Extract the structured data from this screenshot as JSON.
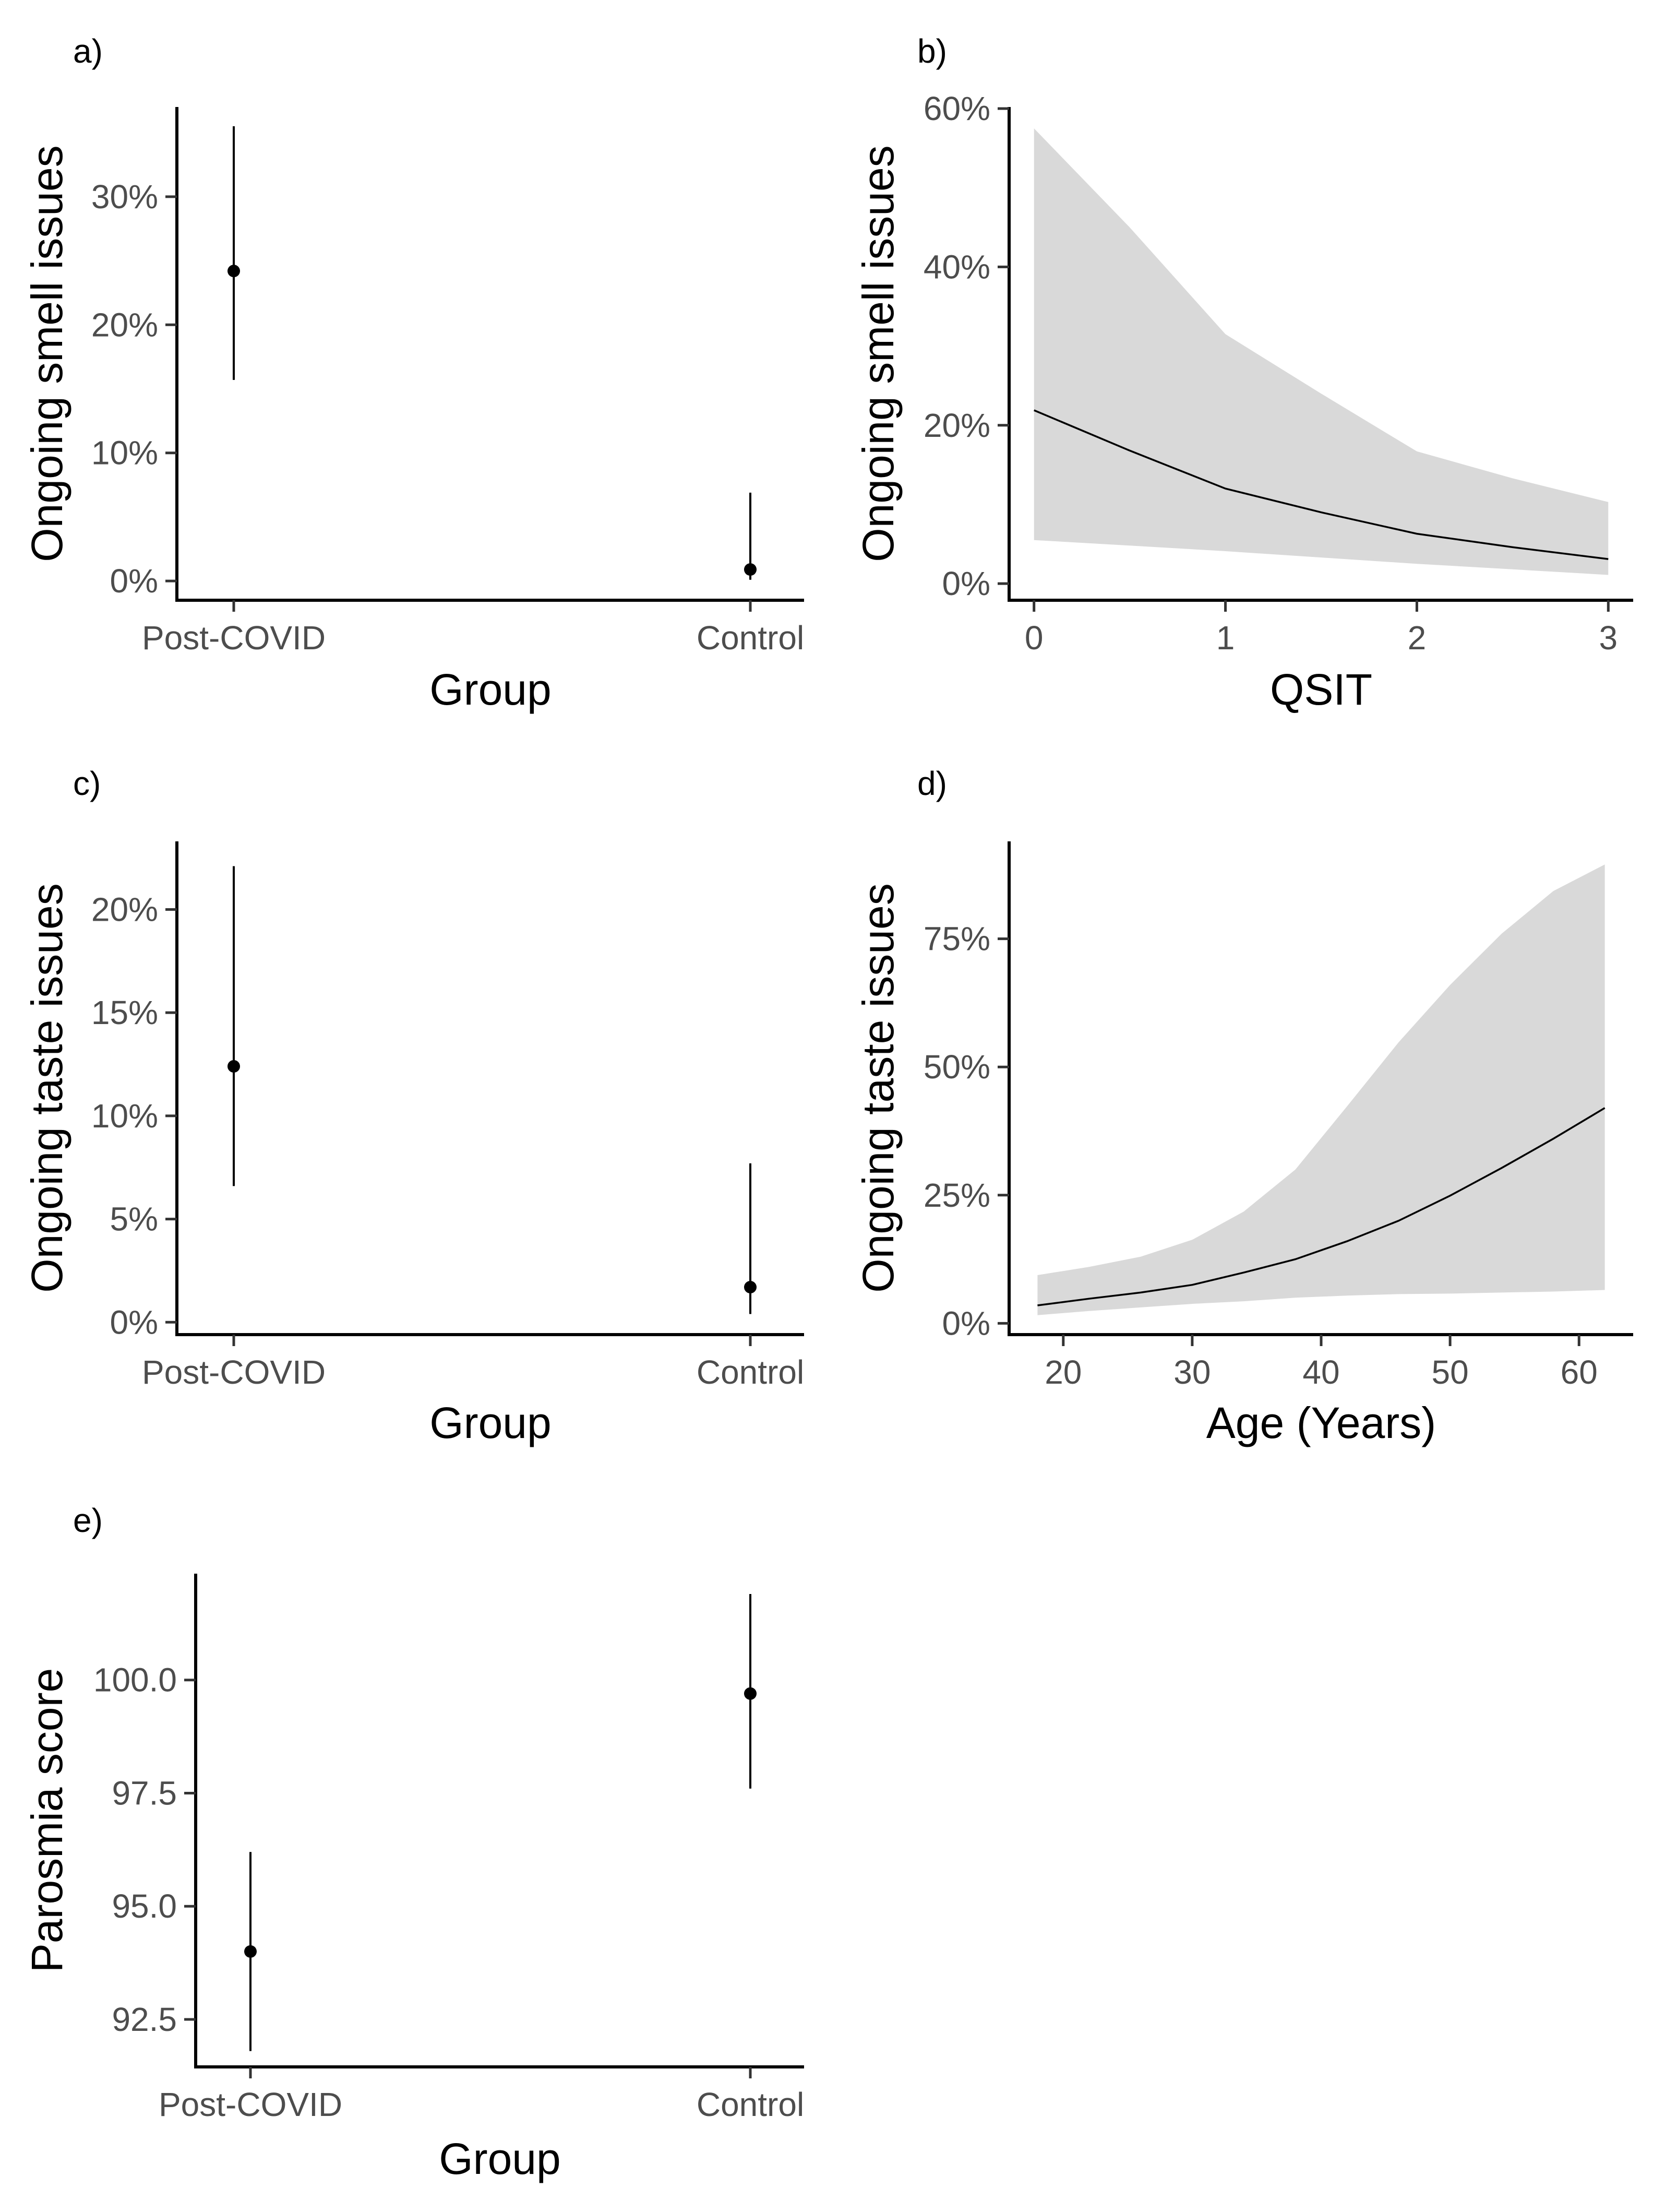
{
  "chart_data": [
    {
      "panel": "a)",
      "type": "scatter",
      "subtype": "point-errorbar",
      "xlabel": "Group",
      "ylabel": "Ongoing smell issues",
      "categories": [
        "Post-COVID",
        "Control"
      ],
      "values": [
        24.2,
        0.9
      ],
      "lower": [
        15.7,
        0.1
      ],
      "upper": [
        35.5,
        6.9
      ],
      "yticks": [
        0,
        10,
        20,
        30
      ],
      "ytick_labels": [
        "0%",
        "10%",
        "20%",
        "30%"
      ],
      "ylim": [
        -1.5,
        37
      ]
    },
    {
      "panel": "b)",
      "type": "area",
      "subtype": "line-ribbon",
      "xlabel": "QSIT",
      "ylabel": "Ongoing smell issues",
      "x": [
        0,
        0.5,
        1,
        1.5,
        2,
        2.5,
        3
      ],
      "y": [
        21.9,
        16.8,
        12.0,
        9.0,
        6.3,
        4.6,
        3.1
      ],
      "lower": [
        5.5,
        4.8,
        4.1,
        3.3,
        2.5,
        1.8,
        1.1
      ],
      "upper": [
        57.5,
        45.0,
        31.5,
        24.0,
        16.7,
        13.3,
        10.3
      ],
      "xticks": [
        0,
        1,
        2,
        3
      ],
      "xtick_labels": [
        "0",
        "1",
        "2",
        "3"
      ],
      "yticks": [
        0,
        20,
        40,
        60
      ],
      "ytick_labels": [
        "0%",
        "20%",
        "40%",
        "60%"
      ],
      "xlim": [
        -0.13,
        3.13
      ],
      "ylim": [
        -2.1,
        60.2
      ]
    },
    {
      "panel": "c)",
      "type": "scatter",
      "subtype": "point-errorbar",
      "xlabel": "Group",
      "ylabel": "Ongoing taste issues",
      "categories": [
        "Post-COVID",
        "Control"
      ],
      "values": [
        12.4,
        1.7
      ],
      "lower": [
        6.6,
        0.4
      ],
      "upper": [
        22.1,
        7.7
      ],
      "yticks": [
        0,
        5,
        10,
        15,
        20
      ],
      "ytick_labels": [
        "0%",
        "5%",
        "10%",
        "15%",
        "20%"
      ],
      "ylim": [
        -0.6,
        23.3
      ]
    },
    {
      "panel": "d)",
      "type": "area",
      "subtype": "line-ribbon",
      "xlabel": "Age (Years)",
      "ylabel": "Ongoing taste issues",
      "x": [
        18,
        22,
        26,
        30,
        34,
        38,
        42,
        46,
        50,
        54,
        58,
        62
      ],
      "y": [
        3.5,
        4.8,
        6.0,
        7.5,
        9.9,
        12.5,
        16.0,
        20.0,
        24.9,
        30.3,
        36.0,
        42.0
      ],
      "lower": [
        1.6,
        2.4,
        3.1,
        3.8,
        4.3,
        5.0,
        5.4,
        5.7,
        5.8,
        6.0,
        6.2,
        6.5
      ],
      "upper": [
        9.4,
        11.0,
        13.0,
        16.3,
        21.8,
        30.0,
        42.3,
        54.8,
        66.0,
        76.0,
        84.3,
        89.5
      ],
      "xticks": [
        20,
        30,
        40,
        50,
        60
      ],
      "xtick_labels": [
        "20",
        "30",
        "40",
        "50",
        "60"
      ],
      "yticks": [
        0,
        25,
        50,
        75
      ],
      "ytick_labels": [
        "0%",
        "25%",
        "50%",
        "75%"
      ],
      "xlim": [
        15.8,
        64.2
      ],
      "ylim": [
        -2.2,
        94
      ]
    },
    {
      "panel": "e)",
      "type": "scatter",
      "subtype": "point-errorbar",
      "xlabel": "Group",
      "ylabel": "Parosmia score",
      "categories": [
        "Post-COVID",
        "Control"
      ],
      "values": [
        94.0,
        99.7
      ],
      "lower": [
        91.8,
        97.6
      ],
      "upper": [
        96.2,
        101.9
      ],
      "yticks": [
        92.5,
        95.0,
        97.5,
        100.0
      ],
      "ytick_labels": [
        "92.5",
        "95.0",
        "97.5",
        "100.0"
      ],
      "ylim": [
        91.45,
        102.35
      ]
    }
  ]
}
